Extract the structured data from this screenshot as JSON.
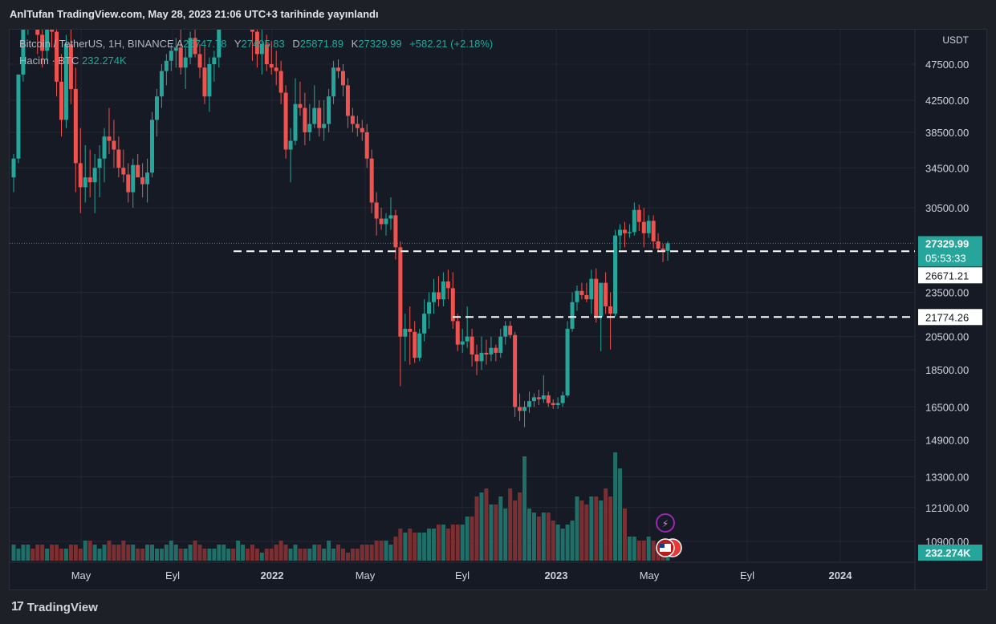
{
  "header": {
    "published_line": "AnlTufan TradingView.com, May 28, 2023 21:06 UTC+3 tarihinde yayınlandı"
  },
  "legend": {
    "symbol": "Bitcoin / TetherUS, 1H, BINANCE",
    "open_label": "A",
    "open_value": "26747.78",
    "high_label": "Y",
    "high_value": "27495.83",
    "low_label": "D",
    "low_value": "25871.89",
    "close_label": "K",
    "close_value": "27329.99",
    "change": "+582.21 (+2.18%)",
    "volume_label": "Hacim · BTC",
    "volume_value": "232.274K"
  },
  "price_axis": {
    "currency": "USDT",
    "current_price": "27329.99",
    "countdown": "05:53:33",
    "level_1": "26671.21",
    "level_2": "21774.26",
    "volume_tag": "232.274K"
  },
  "footer": {
    "brand": "TradingView",
    "logo_text": "17"
  },
  "colors": {
    "up": "#26a69a",
    "down": "#ef5350",
    "up_volume": "#1f6e67",
    "down_volume": "#7a2f33",
    "background": "#161a25",
    "grid": "#242733",
    "level_line": "#ffffff",
    "current_price_bg": "#26a69a"
  },
  "chart_data": {
    "type": "candlestick",
    "title": "Bitcoin / TetherUS, 1H, BINANCE",
    "scale": "log",
    "y_ticks": [
      47500,
      42500,
      38500,
      34500,
      30500,
      23500,
      20500,
      18500,
      16500,
      14900,
      13300,
      12100,
      10900
    ],
    "x_ticks": [
      "May",
      "Eyl",
      "2022",
      "May",
      "Eyl",
      "2023",
      "May",
      "Eyl",
      "2024"
    ],
    "horizontal_levels": [
      26671.21,
      21774.26
    ],
    "last_price": 27329.99,
    "candles": [
      {
        "o": 33500,
        "h": 36000,
        "l": 32000,
        "c": 35500
      },
      {
        "o": 35500,
        "h": 46000,
        "l": 35000,
        "c": 46000
      },
      {
        "o": 46000,
        "h": 57000,
        "l": 45000,
        "c": 56000
      },
      {
        "o": 56000,
        "h": 59000,
        "l": 52000,
        "c": 57000
      },
      {
        "o": 57000,
        "h": 61000,
        "l": 53000,
        "c": 55000
      },
      {
        "o": 55000,
        "h": 58000,
        "l": 49000,
        "c": 52000
      },
      {
        "o": 52000,
        "h": 55000,
        "l": 47000,
        "c": 49500
      },
      {
        "o": 49500,
        "h": 59000,
        "l": 48000,
        "c": 57000
      },
      {
        "o": 57000,
        "h": 60000,
        "l": 50000,
        "c": 52500
      },
      {
        "o": 52500,
        "h": 56000,
        "l": 43000,
        "c": 45000
      },
      {
        "o": 45000,
        "h": 49000,
        "l": 38000,
        "c": 40000
      },
      {
        "o": 40000,
        "h": 52000,
        "l": 39000,
        "c": 50500
      },
      {
        "o": 50500,
        "h": 58000,
        "l": 42000,
        "c": 44000
      },
      {
        "o": 44000,
        "h": 47000,
        "l": 32000,
        "c": 35000
      },
      {
        "o": 35000,
        "h": 39000,
        "l": 30000,
        "c": 32500
      },
      {
        "o": 32500,
        "h": 37000,
        "l": 31000,
        "c": 33500
      },
      {
        "o": 33500,
        "h": 36500,
        "l": 31500,
        "c": 33000
      },
      {
        "o": 33000,
        "h": 36000,
        "l": 30000,
        "c": 34500
      },
      {
        "o": 34500,
        "h": 37000,
        "l": 31500,
        "c": 35500
      },
      {
        "o": 35500,
        "h": 39000,
        "l": 33000,
        "c": 38000
      },
      {
        "o": 38000,
        "h": 41500,
        "l": 36000,
        "c": 37500
      },
      {
        "o": 37500,
        "h": 40000,
        "l": 34500,
        "c": 36500
      },
      {
        "o": 36500,
        "h": 38000,
        "l": 33500,
        "c": 34500
      },
      {
        "o": 34500,
        "h": 36500,
        "l": 33000,
        "c": 33800
      },
      {
        "o": 33800,
        "h": 35000,
        "l": 31000,
        "c": 32000
      },
      {
        "o": 32000,
        "h": 35500,
        "l": 30500,
        "c": 34800
      },
      {
        "o": 34800,
        "h": 36000,
        "l": 33500,
        "c": 33500
      },
      {
        "o": 33500,
        "h": 35000,
        "l": 31500,
        "c": 32800
      },
      {
        "o": 32800,
        "h": 35500,
        "l": 31000,
        "c": 34000
      },
      {
        "o": 34000,
        "h": 41000,
        "l": 33500,
        "c": 40000
      },
      {
        "o": 40000,
        "h": 44000,
        "l": 38000,
        "c": 43000
      },
      {
        "o": 43000,
        "h": 47500,
        "l": 41500,
        "c": 46500
      },
      {
        "o": 46500,
        "h": 49000,
        "l": 44500,
        "c": 48000
      },
      {
        "o": 48000,
        "h": 50500,
        "l": 46500,
        "c": 49500
      },
      {
        "o": 49500,
        "h": 51500,
        "l": 47000,
        "c": 50000
      },
      {
        "o": 50000,
        "h": 53000,
        "l": 46000,
        "c": 47000
      },
      {
        "o": 47000,
        "h": 50000,
        "l": 44000,
        "c": 48500
      },
      {
        "o": 48500,
        "h": 52500,
        "l": 47500,
        "c": 51500
      },
      {
        "o": 51500,
        "h": 53500,
        "l": 48500,
        "c": 49000
      },
      {
        "o": 49000,
        "h": 50500,
        "l": 45500,
        "c": 47000
      },
      {
        "o": 47000,
        "h": 50500,
        "l": 42000,
        "c": 43000
      },
      {
        "o": 43000,
        "h": 48500,
        "l": 41000,
        "c": 47500
      },
      {
        "o": 47500,
        "h": 49500,
        "l": 45000,
        "c": 48500
      },
      {
        "o": 48500,
        "h": 56000,
        "l": 47000,
        "c": 55000
      },
      {
        "o": 55000,
        "h": 59000,
        "l": 53000,
        "c": 57500
      },
      {
        "o": 57500,
        "h": 60500,
        "l": 55000,
        "c": 59000
      },
      {
        "o": 59000,
        "h": 62000,
        "l": 56000,
        "c": 58000
      },
      {
        "o": 58000,
        "h": 64000,
        "l": 56500,
        "c": 62000
      },
      {
        "o": 62000,
        "h": 69000,
        "l": 60500,
        "c": 66500
      },
      {
        "o": 66500,
        "h": 69000,
        "l": 59000,
        "c": 61000
      },
      {
        "o": 61000,
        "h": 61500,
        "l": 48000,
        "c": 52500
      },
      {
        "o": 52500,
        "h": 54000,
        "l": 47000,
        "c": 49000
      },
      {
        "o": 49000,
        "h": 53000,
        "l": 46000,
        "c": 50500
      },
      {
        "o": 50500,
        "h": 52000,
        "l": 46500,
        "c": 47500
      },
      {
        "o": 47500,
        "h": 51000,
        "l": 46000,
        "c": 47000
      },
      {
        "o": 47000,
        "h": 49500,
        "l": 44500,
        "c": 46500
      },
      {
        "o": 46500,
        "h": 48000,
        "l": 42000,
        "c": 43500
      },
      {
        "o": 43500,
        "h": 44500,
        "l": 35500,
        "c": 36500
      },
      {
        "o": 36500,
        "h": 39000,
        "l": 33000,
        "c": 37500
      },
      {
        "o": 37500,
        "h": 45500,
        "l": 37000,
        "c": 42000
      },
      {
        "o": 42000,
        "h": 45000,
        "l": 40500,
        "c": 41500
      },
      {
        "o": 41500,
        "h": 43500,
        "l": 37000,
        "c": 38500
      },
      {
        "o": 38500,
        "h": 42000,
        "l": 37500,
        "c": 39500
      },
      {
        "o": 39500,
        "h": 44500,
        "l": 39000,
        "c": 41500
      },
      {
        "o": 41500,
        "h": 42500,
        "l": 38000,
        "c": 39000
      },
      {
        "o": 39000,
        "h": 42500,
        "l": 37500,
        "c": 39500
      },
      {
        "o": 39500,
        "h": 44000,
        "l": 38500,
        "c": 43000
      },
      {
        "o": 43000,
        "h": 48000,
        "l": 42000,
        "c": 47000
      },
      {
        "o": 47000,
        "h": 48200,
        "l": 45500,
        "c": 46500
      },
      {
        "o": 46500,
        "h": 47500,
        "l": 43000,
        "c": 44500
      },
      {
        "o": 44500,
        "h": 45500,
        "l": 39000,
        "c": 40500
      },
      {
        "o": 40500,
        "h": 41500,
        "l": 38500,
        "c": 39500
      },
      {
        "o": 39500,
        "h": 40500,
        "l": 38000,
        "c": 39000
      },
      {
        "o": 39000,
        "h": 40000,
        "l": 37500,
        "c": 38500
      },
      {
        "o": 38500,
        "h": 39500,
        "l": 34500,
        "c": 35500
      },
      {
        "o": 35500,
        "h": 36500,
        "l": 30000,
        "c": 31000
      },
      {
        "o": 31000,
        "h": 32000,
        "l": 28000,
        "c": 29500
      },
      {
        "o": 29500,
        "h": 30500,
        "l": 28500,
        "c": 29000
      },
      {
        "o": 29000,
        "h": 30000,
        "l": 28000,
        "c": 29500
      },
      {
        "o": 29500,
        "h": 31500,
        "l": 28500,
        "c": 29800
      },
      {
        "o": 29800,
        "h": 30300,
        "l": 26000,
        "c": 27000
      },
      {
        "o": 27000,
        "h": 27500,
        "l": 17600,
        "c": 20500
      },
      {
        "o": 20500,
        "h": 22000,
        "l": 19000,
        "c": 21000
      },
      {
        "o": 21000,
        "h": 22500,
        "l": 18800,
        "c": 20800
      },
      {
        "o": 20800,
        "h": 21500,
        "l": 18900,
        "c": 19200
      },
      {
        "o": 19200,
        "h": 21000,
        "l": 19000,
        "c": 20700
      },
      {
        "o": 20700,
        "h": 23000,
        "l": 20200,
        "c": 22000
      },
      {
        "o": 22000,
        "h": 23500,
        "l": 21000,
        "c": 22800
      },
      {
        "o": 22800,
        "h": 24500,
        "l": 22000,
        "c": 23500
      },
      {
        "o": 23500,
        "h": 24700,
        "l": 22500,
        "c": 23000
      },
      {
        "o": 23000,
        "h": 25000,
        "l": 22500,
        "c": 24300
      },
      {
        "o": 24300,
        "h": 25200,
        "l": 23000,
        "c": 23800
      },
      {
        "o": 23800,
        "h": 25000,
        "l": 21000,
        "c": 21500
      },
      {
        "o": 21500,
        "h": 22000,
        "l": 19600,
        "c": 20000
      },
      {
        "o": 20000,
        "h": 21000,
        "l": 19500,
        "c": 20200
      },
      {
        "o": 20200,
        "h": 22500,
        "l": 19800,
        "c": 20500
      },
      {
        "o": 20500,
        "h": 21000,
        "l": 18700,
        "c": 19400
      },
      {
        "o": 19400,
        "h": 20000,
        "l": 18200,
        "c": 19000
      },
      {
        "o": 19000,
        "h": 20500,
        "l": 18500,
        "c": 19500
      },
      {
        "o": 19500,
        "h": 20300,
        "l": 18800,
        "c": 19400
      },
      {
        "o": 19400,
        "h": 20500,
        "l": 19000,
        "c": 19800
      },
      {
        "o": 19800,
        "h": 20000,
        "l": 19000,
        "c": 19500
      },
      {
        "o": 19500,
        "h": 21000,
        "l": 19200,
        "c": 20500
      },
      {
        "o": 20500,
        "h": 21500,
        "l": 20000,
        "c": 21200
      },
      {
        "o": 21200,
        "h": 21500,
        "l": 20400,
        "c": 20600
      },
      {
        "o": 20600,
        "h": 20800,
        "l": 16000,
        "c": 16500
      },
      {
        "o": 16500,
        "h": 17200,
        "l": 15800,
        "c": 16300
      },
      {
        "o": 16300,
        "h": 16800,
        "l": 15500,
        "c": 16500
      },
      {
        "o": 16500,
        "h": 17300,
        "l": 16200,
        "c": 16800
      },
      {
        "o": 16800,
        "h": 17200,
        "l": 16500,
        "c": 17000
      },
      {
        "o": 17000,
        "h": 17400,
        "l": 16600,
        "c": 16900
      },
      {
        "o": 16900,
        "h": 18200,
        "l": 16700,
        "c": 17100
      },
      {
        "o": 17100,
        "h": 17300,
        "l": 16500,
        "c": 16700
      },
      {
        "o": 16700,
        "h": 16900,
        "l": 16400,
        "c": 16600
      },
      {
        "o": 16600,
        "h": 17000,
        "l": 16400,
        "c": 16700
      },
      {
        "o": 16700,
        "h": 17300,
        "l": 16500,
        "c": 17100
      },
      {
        "o": 17100,
        "h": 21500,
        "l": 17000,
        "c": 21000
      },
      {
        "o": 21000,
        "h": 23500,
        "l": 20800,
        "c": 22800
      },
      {
        "o": 22800,
        "h": 24000,
        "l": 22200,
        "c": 23600
      },
      {
        "o": 23600,
        "h": 24200,
        "l": 23000,
        "c": 23300
      },
      {
        "o": 23300,
        "h": 24200,
        "l": 22800,
        "c": 23000
      },
      {
        "o": 23000,
        "h": 25200,
        "l": 22000,
        "c": 24500
      },
      {
        "o": 24500,
        "h": 25300,
        "l": 21400,
        "c": 21800
      },
      {
        "o": 21800,
        "h": 24000,
        "l": 19600,
        "c": 24200
      },
      {
        "o": 24200,
        "h": 25000,
        "l": 22000,
        "c": 22500
      },
      {
        "o": 22500,
        "h": 23500,
        "l": 19700,
        "c": 22000
      },
      {
        "o": 22000,
        "h": 28500,
        "l": 21800,
        "c": 28000
      },
      {
        "o": 28000,
        "h": 29000,
        "l": 26800,
        "c": 28500
      },
      {
        "o": 28500,
        "h": 29200,
        "l": 27000,
        "c": 28200
      },
      {
        "o": 28200,
        "h": 29000,
        "l": 27800,
        "c": 28300
      },
      {
        "o": 28300,
        "h": 31000,
        "l": 28000,
        "c": 30300
      },
      {
        "o": 30300,
        "h": 30800,
        "l": 28400,
        "c": 29200
      },
      {
        "o": 29200,
        "h": 30500,
        "l": 27000,
        "c": 28200
      },
      {
        "o": 28200,
        "h": 29800,
        "l": 27800,
        "c": 29300
      },
      {
        "o": 29300,
        "h": 29800,
        "l": 26900,
        "c": 27500
      },
      {
        "o": 27500,
        "h": 28200,
        "l": 26600,
        "c": 26900
      },
      {
        "o": 26900,
        "h": 27300,
        "l": 25800,
        "c": 26700
      },
      {
        "o": 26700,
        "h": 27500,
        "l": 25900,
        "c": 27330
      }
    ],
    "volumes": [
      4,
      3,
      4,
      4,
      3,
      4,
      4,
      3,
      4,
      4,
      3,
      3,
      4,
      4,
      3,
      5,
      5,
      4,
      3,
      4,
      5,
      4,
      4,
      5,
      4,
      4,
      3,
      3,
      4,
      4,
      3,
      3,
      4,
      5,
      4,
      3,
      3,
      4,
      5,
      4,
      3,
      3,
      3,
      4,
      4,
      3,
      3,
      5,
      4,
      3,
      4,
      3,
      2,
      3,
      3,
      4,
      5,
      4,
      3,
      4,
      3,
      3,
      3,
      4,
      4,
      3,
      5,
      3,
      4,
      3,
      2,
      3,
      3,
      4,
      4,
      4,
      5,
      5,
      5,
      4,
      6,
      8,
      7,
      8,
      7,
      7,
      7,
      8,
      8,
      9,
      9,
      8,
      9,
      9,
      9,
      11,
      11,
      16,
      17,
      18,
      14,
      14,
      16,
      13,
      18,
      15,
      17,
      26,
      13,
      12,
      11,
      12,
      12,
      10,
      9,
      8,
      9,
      10,
      16,
      15,
      14,
      16,
      16,
      15,
      18,
      16,
      27,
      23,
      13,
      6,
      6,
      5,
      5,
      6,
      5,
      4,
      4,
      4
    ]
  }
}
